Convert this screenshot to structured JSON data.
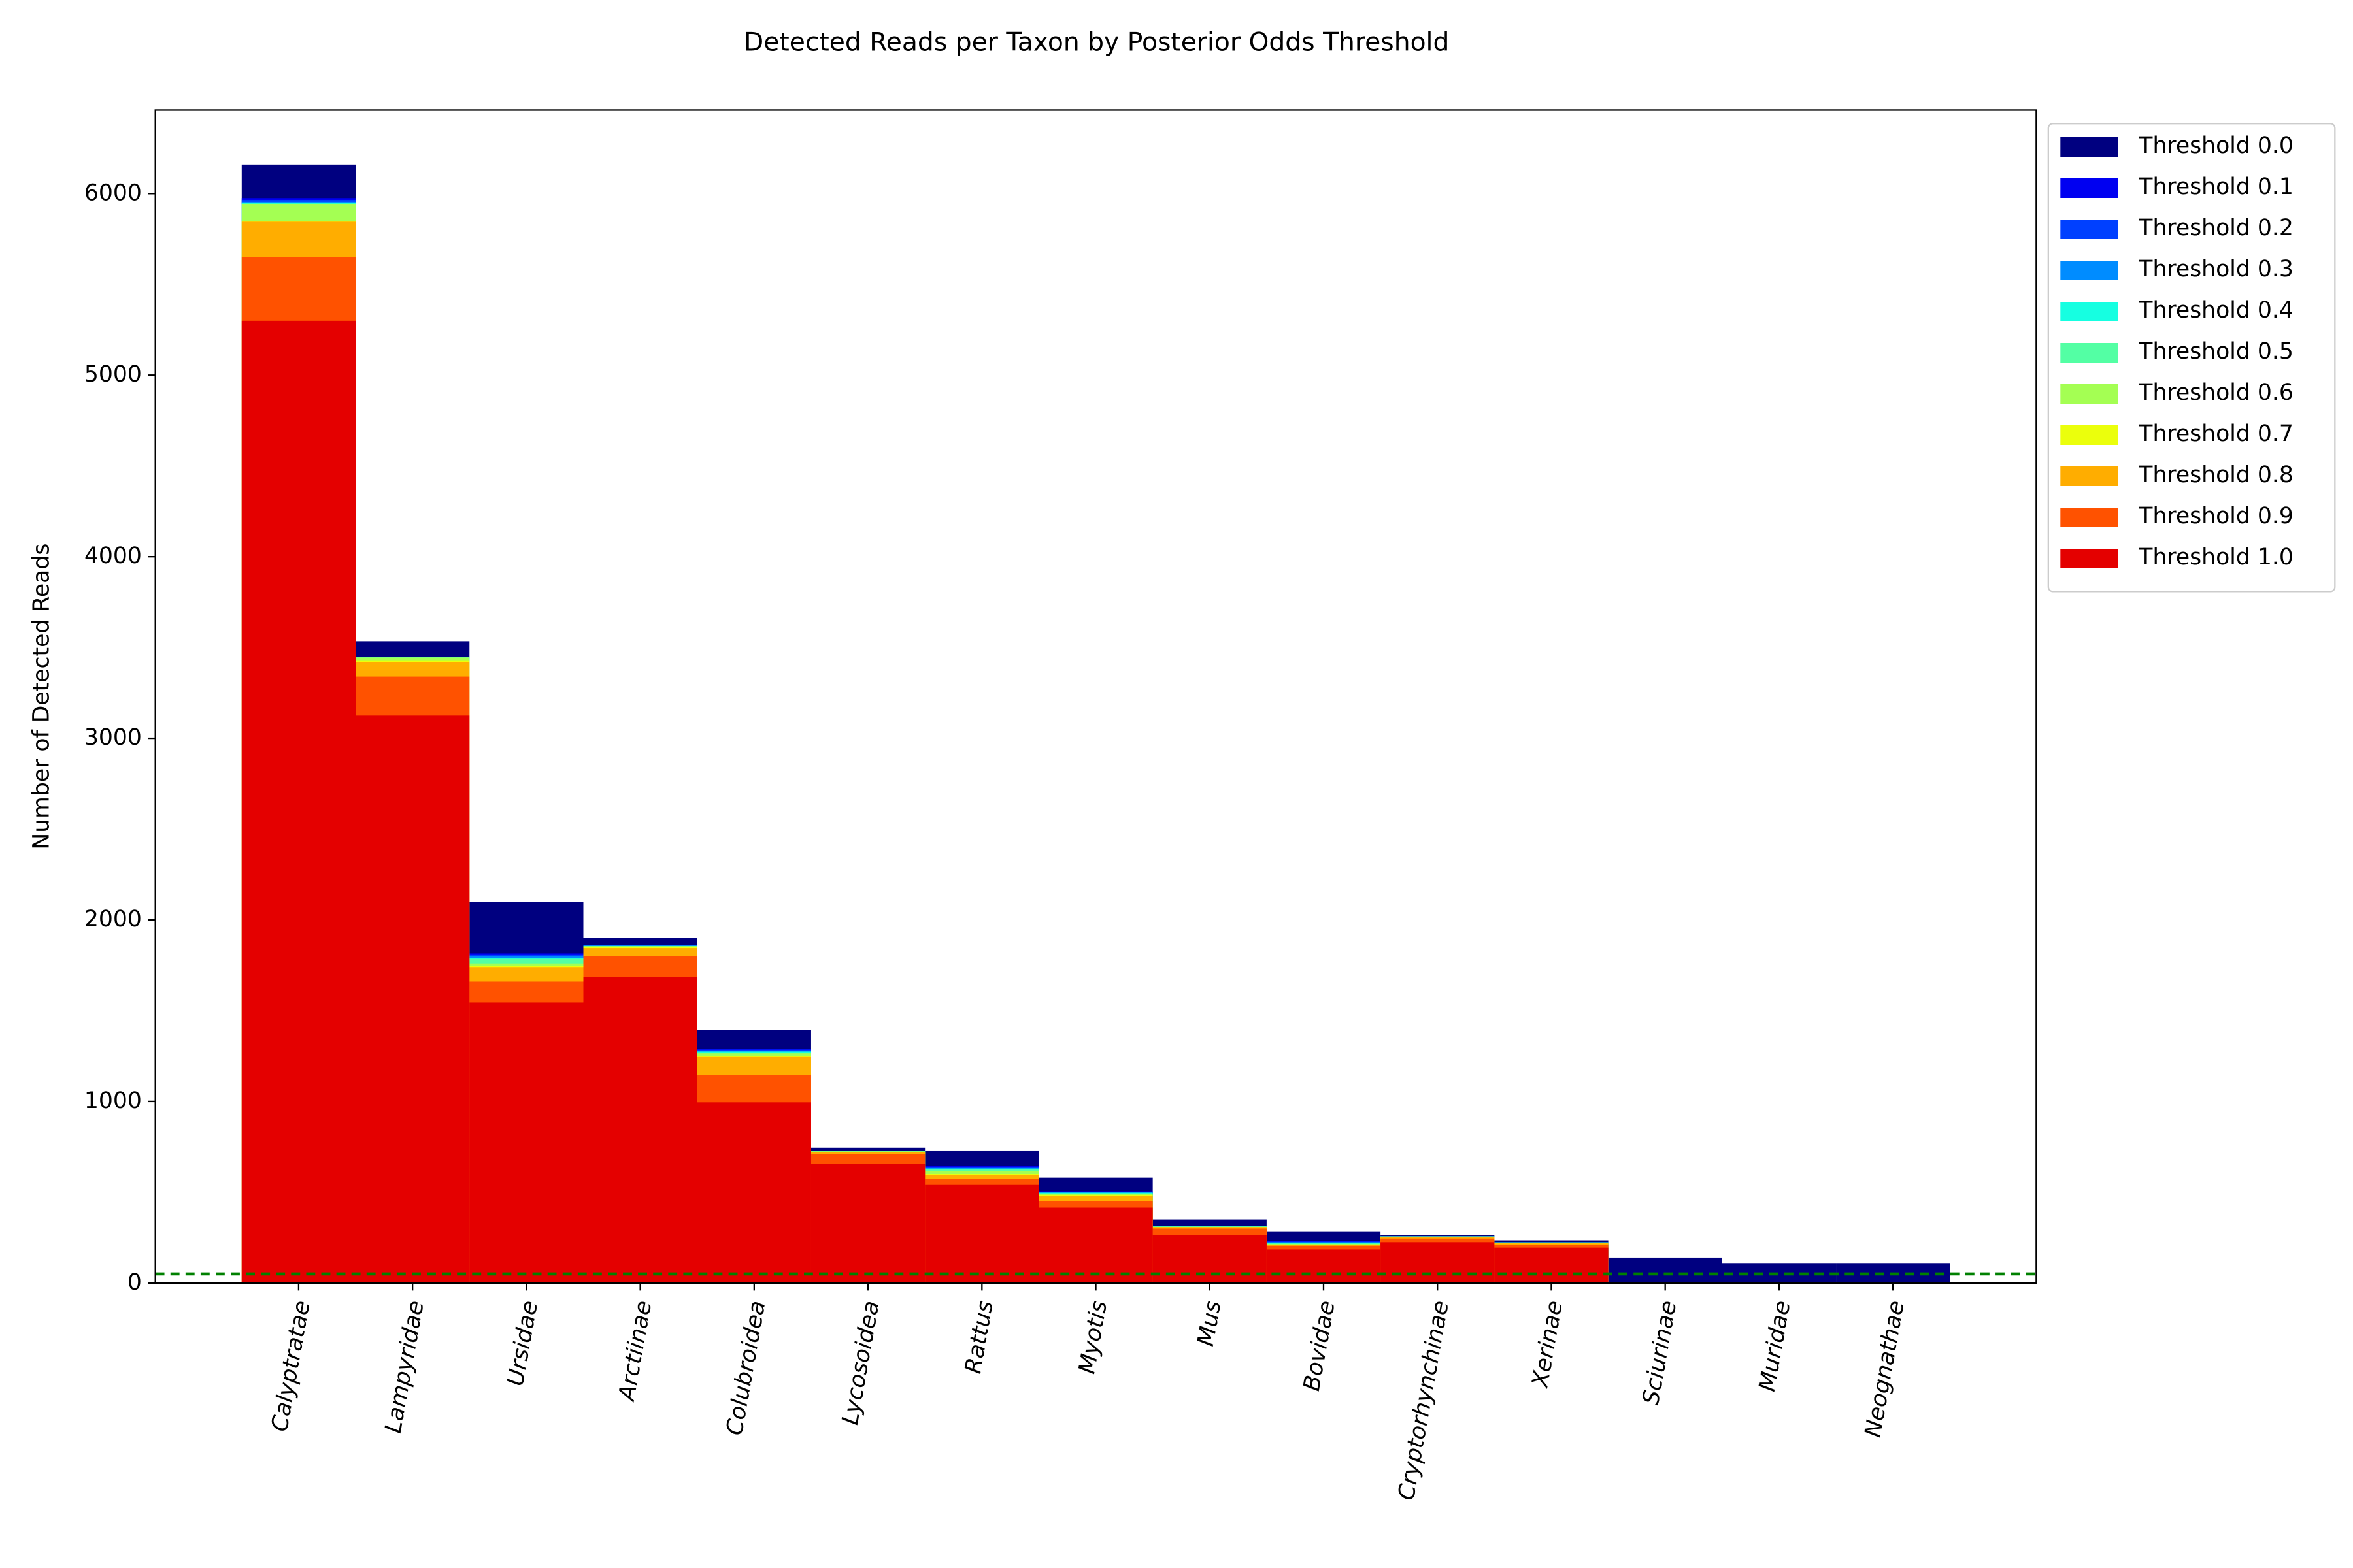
{
  "chart_data": {
    "type": "overlapping_bar",
    "title": "Detected Reads per Taxon by Posterior Odds Threshold",
    "ylabel": "Number of Detected Reads",
    "categories": [
      "Calyptratae",
      "Lampyridae",
      "Ursidae",
      "Arctiinae",
      "Colubroidea",
      "Lycosoidea",
      "Rattus",
      "Myotis",
      "Mus",
      "Bovidae",
      "Cryptorhynchinae",
      "Xerinae",
      "Sciurinae",
      "Muridae",
      "Neognathae"
    ],
    "series": [
      {
        "name": "Threshold 0.0",
        "color": "#000080",
        "values": [
          6160,
          3535,
          2100,
          1900,
          1395,
          745,
          730,
          580,
          350,
          285,
          265,
          235,
          140,
          110,
          110
        ]
      },
      {
        "name": "Threshold 0.1",
        "color": "#0000f1",
        "values": [
          5975,
          3450,
          1815,
          1860,
          1290,
          730,
          645,
          505,
          315,
          230,
          258,
          225,
          0,
          0,
          0
        ]
      },
      {
        "name": "Threshold 0.2",
        "color": "#0040ff",
        "values": [
          5965,
          3450,
          1810,
          1860,
          1285,
          729,
          640,
          502,
          314,
          228,
          258,
          225,
          0,
          0,
          0
        ]
      },
      {
        "name": "Threshold 0.3",
        "color": "#008cff",
        "values": [
          5955,
          3448,
          1800,
          1858,
          1280,
          728,
          635,
          500,
          313,
          225,
          257,
          224,
          0,
          0,
          0
        ]
      },
      {
        "name": "Threshold 0.4",
        "color": "#16ffe1",
        "values": [
          5950,
          3447,
          1790,
          1857,
          1275,
          727,
          630,
          497,
          312,
          222,
          257,
          224,
          0,
          0,
          0
        ]
      },
      {
        "name": "Threshold 0.5",
        "color": "#53ffa4",
        "values": [
          5945,
          3446,
          1785,
          1856,
          1270,
          726,
          625,
          494,
          311,
          218,
          256,
          223,
          0,
          0,
          0
        ]
      },
      {
        "name": "Threshold 0.6",
        "color": "#a4ff53",
        "values": [
          5940,
          3445,
          1760,
          1855,
          1265,
          725,
          615,
          490,
          310,
          215,
          256,
          223,
          0,
          0,
          0
        ]
      },
      {
        "name": "Threshold 0.7",
        "color": "#ebff0c",
        "values": [
          5850,
          3430,
          1745,
          1850,
          1250,
          722,
          600,
          485,
          309,
          212,
          255,
          220,
          0,
          0,
          0
        ]
      },
      {
        "name": "Threshold 0.8",
        "color": "#ffad00",
        "values": [
          5845,
          3420,
          1740,
          1845,
          1245,
          720,
          595,
          480,
          308,
          210,
          254,
          218,
          0,
          0,
          0
        ]
      },
      {
        "name": "Threshold 0.9",
        "color": "#ff5200",
        "values": [
          5650,
          3340,
          1660,
          1800,
          1145,
          710,
          575,
          450,
          300,
          205,
          245,
          210,
          0,
          0,
          0
        ]
      },
      {
        "name": "Threshold 1.0",
        "color": "#e40000",
        "values": [
          5300,
          3125,
          1545,
          1685,
          995,
          655,
          540,
          415,
          265,
          185,
          225,
          195,
          0,
          0,
          0
        ]
      }
    ],
    "ylim": [
      0,
      6460
    ],
    "yticks": [
      0,
      1000,
      2000,
      3000,
      4000,
      5000,
      6000
    ],
    "reference_line": {
      "value": 50,
      "color": "#008000"
    },
    "legend": "upper right outside"
  }
}
